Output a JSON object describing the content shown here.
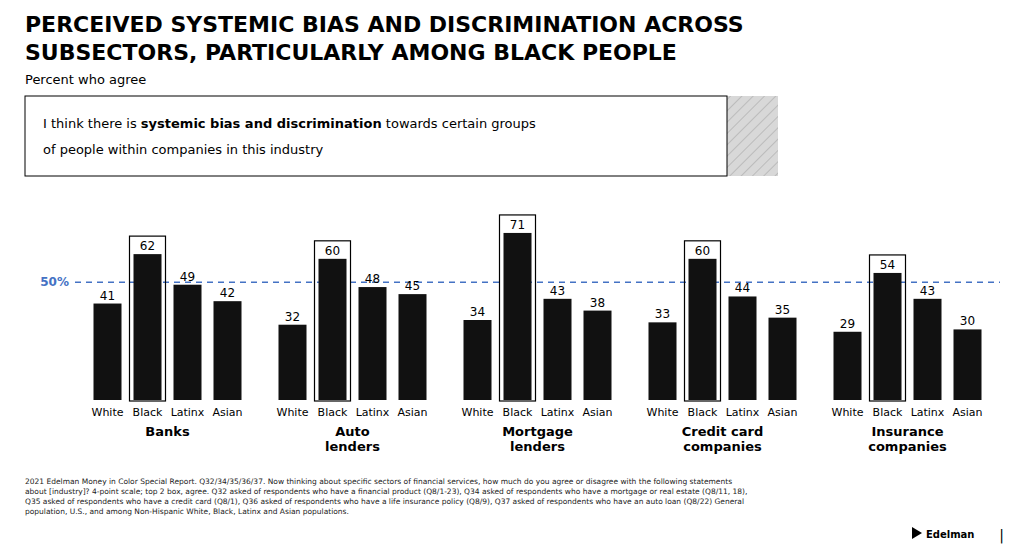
{
  "chart_data": {
    "type": "bar",
    "title": "PERCEIVED SYSTEMIC BIAS AND DISCRIMINATION ACROSS\nSUBSECTORS, PARTICULARLY AMONG BLACK PEOPLE",
    "subtitle": "Percent who agree",
    "categories": [
      "Banks",
      "Auto\nlenders",
      "Mortgage\nlenders",
      "Credit card\ncompanies",
      "Insurance\ncompanies"
    ],
    "series": [
      {
        "name": "White",
        "color": "#111111",
        "values": [
          41,
          32,
          34,
          33,
          29
        ]
      },
      {
        "name": "Black",
        "color": "#111111",
        "values": [
          62,
          60,
          71,
          60,
          54
        ]
      },
      {
        "name": "Latinx",
        "color": "#111111",
        "values": [
          49,
          48,
          43,
          44,
          43
        ]
      },
      {
        "name": "Asian",
        "color": "#111111",
        "values": [
          42,
          45,
          38,
          35,
          30
        ]
      }
    ],
    "ylim": [
      0,
      85
    ],
    "grid": false,
    "data_labels": true,
    "tick_labels": "x",
    "reference_line": {
      "value": 50,
      "label": "50%",
      "color": "#4472C4"
    },
    "annotations": {
      "quote": [
        [
          "I think there is ",
          "systemic bias and discrimination",
          " towards certain groups"
        ],
        [
          "of people within companies in this industry"
        ]
      ],
      "footnote": "2021 Edelman Money in Color Special Report. Q32/34/35/36/37. Now thinking about specific sectors of financial services, how much do you agree or disagree with the following statements\nabout [industry]? 4-point scale; top 2 box, agree. Q32 asked of respondents who have a financial product (Q8/1-23), Q34 asked of respondents who have a mortgage or real estate (Q8/11, 18),\nQ35 asked of respondents who have a credit card (Q8/1), Q36 asked of respondents who have a life insurance policy (Q8/9), Q37 asked of respondents who have an auto loan (Q8/22) General\npopulation, U.S., and among Non-Hispanic White, Black, Latinx and Asian populations.",
      "logo": "Edelman",
      "separator": "|"
    }
  }
}
